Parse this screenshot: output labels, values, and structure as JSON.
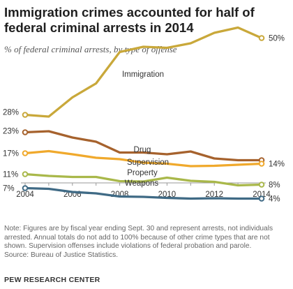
{
  "title": "Immigration crimes accounted for half of federal criminal arrests in 2014",
  "subtitle": "% of federal criminal arrests, by type of offense",
  "note_lines": [
    "Note: Figures are by fiscal year ending Sept. 30 and represent arrests, not individuals",
    "arrested. Annual totals do not add to 100% because of other crime types that are not",
    "shown. Supervision offenses include violations of federal probation and parole.",
    "Source: Bureau of Justice Statistics."
  ],
  "org": "PEW RESEARCH CENTER",
  "chart_data": {
    "type": "line",
    "title": "Immigration crimes accounted for half of federal criminal arrests in 2014",
    "subtitle": "% of federal criminal arrests, by type of offense",
    "x": [
      2004,
      2005,
      2006,
      2007,
      2008,
      2009,
      2010,
      2011,
      2012,
      2013,
      2014
    ],
    "x_ticks": [
      "2004",
      "2006",
      "2008",
      "2010",
      "2012",
      "2014"
    ],
    "xlim": [
      2004,
      2014
    ],
    "ylim": [
      0,
      55
    ],
    "grid": false,
    "y_axis_visible": false,
    "series": [
      {
        "name": "Immigration",
        "color": "#c9a83a",
        "start_label": "28%",
        "end_label": "50%",
        "values": [
          28,
          27.5,
          33,
          37,
          46,
          47.5,
          47.2,
          48.5,
          51.5,
          53,
          50
        ]
      },
      {
        "name": "Drug",
        "color": "#a6622d",
        "start_label": "23%",
        "end_label": "",
        "values": [
          23,
          23.3,
          21.5,
          20.3,
          17.2,
          17.2,
          16.7,
          17.5,
          15.5,
          15,
          15
        ]
      },
      {
        "name": "Supervision",
        "color": "#f0a92c",
        "start_label": "17%",
        "end_label": "14%",
        "values": [
          17,
          17.6,
          16.7,
          15.7,
          15.3,
          14.3,
          14,
          13.3,
          13.4,
          13.7,
          14
        ]
      },
      {
        "name": "Property",
        "color": "#a9b84a",
        "start_label": "11%",
        "end_label": "8%",
        "values": [
          11,
          10.5,
          10.2,
          10.2,
          9,
          8.9,
          10,
          9.1,
          8.8,
          7.8,
          8
        ]
      },
      {
        "name": "Weapons",
        "color": "#3f6a85",
        "start_label": "7%",
        "end_label": "4%",
        "values": [
          7,
          6.8,
          5.9,
          5.5,
          4.6,
          4.5,
          4.2,
          4,
          4.1,
          4,
          4
        ]
      }
    ]
  }
}
